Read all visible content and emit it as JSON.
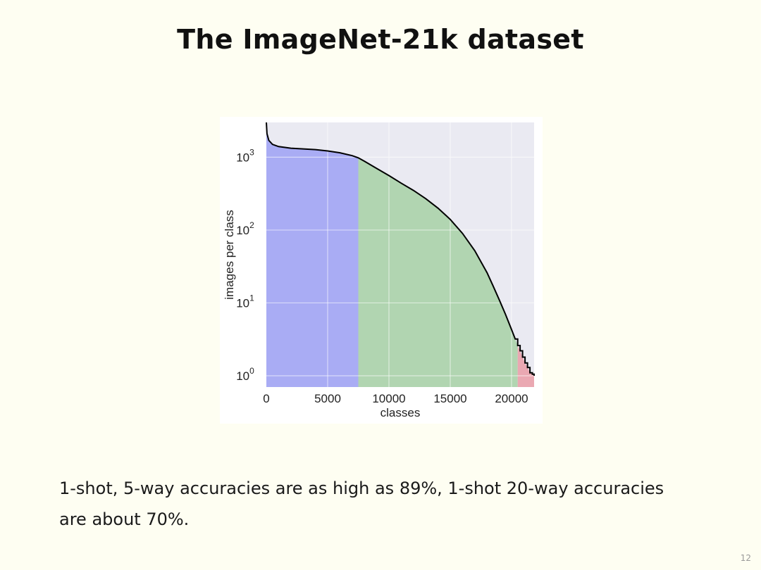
{
  "slide": {
    "title": "The ImageNet-21k dataset",
    "caption": "1-shot, 5-way accuracies are as high as 89%, 1-shot 20-way accuracies are about 70%.",
    "page_number": "12"
  },
  "chart_data": {
    "type": "area",
    "title": "",
    "xlabel": "classes",
    "ylabel": "images per class",
    "yscale": "log",
    "xlim": [
      0,
      21841
    ],
    "ylim": [
      0.7,
      3000
    ],
    "xticks": [
      0,
      5000,
      10000,
      15000,
      20000
    ],
    "xtick_labels": [
      "0",
      "5000",
      "10000",
      "15000",
      "20000"
    ],
    "yticks": [
      1,
      10,
      100,
      1000
    ],
    "ytick_labels": [
      {
        "base": "10",
        "exp": "0"
      },
      {
        "base": "10",
        "exp": "1"
      },
      {
        "base": "10",
        "exp": "2"
      },
      {
        "base": "10",
        "exp": "3"
      }
    ],
    "grid": true,
    "background": "#eaeaf2",
    "line_color": "#000000",
    "series": [
      {
        "x": [
          0,
          50,
          200,
          500,
          1000,
          2000,
          3000,
          4000,
          5000,
          6000,
          7000,
          7500,
          8000,
          9000,
          10000,
          11000,
          12000,
          13000,
          14000,
          15000,
          16000,
          17000,
          18000,
          18500,
          19000,
          19500,
          20000,
          20300,
          20500,
          20700,
          20900,
          21100,
          21300,
          21500,
          21700,
          21841
        ],
        "y": [
          3000,
          2100,
          1700,
          1500,
          1400,
          1330,
          1300,
          1270,
          1220,
          1150,
          1050,
          980,
          880,
          700,
          560,
          440,
          350,
          270,
          200,
          140,
          90,
          52,
          26,
          17,
          11,
          7,
          4.3,
          3.2,
          2.6,
          2.2,
          1.8,
          1.5,
          1.3,
          1.1,
          1.05,
          1
        ]
      }
    ],
    "regions": [
      {
        "x_start": 0,
        "x_end": 7500,
        "color": "#a9acf4"
      },
      {
        "x_start": 7500,
        "x_end": 20500,
        "color": "#b1d5b1"
      },
      {
        "x_start": 20500,
        "x_end": 21841,
        "color": "#eaa8b2"
      }
    ]
  }
}
